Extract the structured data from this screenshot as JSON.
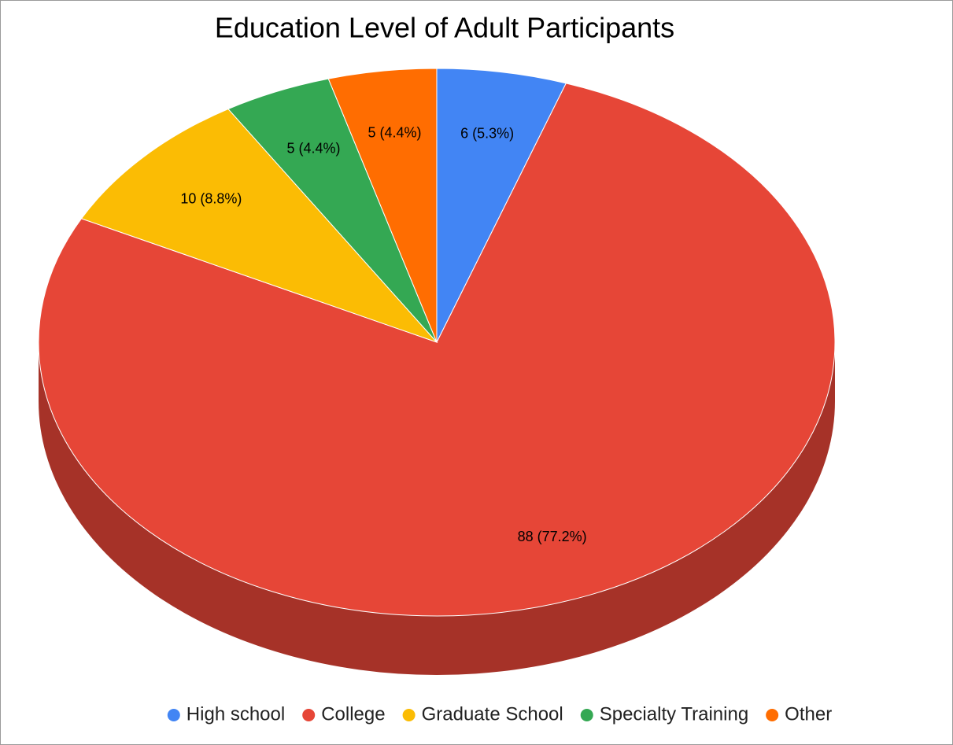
{
  "chart_data": {
    "type": "pie",
    "title": "Education Level of Adult Participants",
    "categories": [
      "High school",
      "College",
      "Graduate School",
      "Specialty Training",
      "Other"
    ],
    "values": [
      6,
      88,
      10,
      5,
      5
    ],
    "value_labels": [
      "6 (5.3%)",
      "88 (77.2%)",
      "10 (8.8%)",
      "5 (4.4%)",
      "5 (4.4%)"
    ],
    "colors": [
      "#4285f4",
      "#e64637",
      "#fbbc04",
      "#34a853",
      "#ff6d01"
    ],
    "legend": "bottom"
  }
}
